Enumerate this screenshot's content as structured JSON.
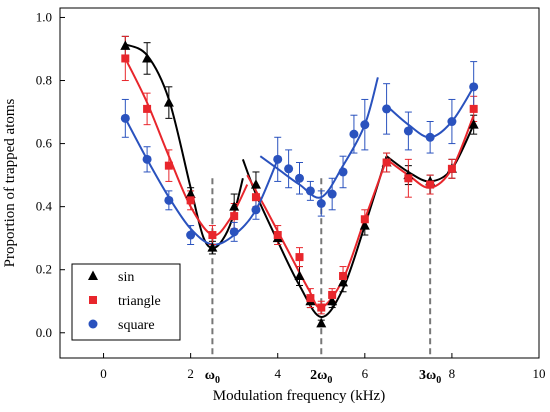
{
  "chart_data": {
    "type": "scatter",
    "xlabel": "Modulation frequency (kHz)",
    "ylabel": "Proportion of trapped atoms",
    "xlim": [
      -1,
      10
    ],
    "ylim": [
      -0.08,
      1.03
    ],
    "x_ticks": [
      0,
      2,
      4,
      6,
      8,
      10
    ],
    "y_ticks": [
      0.0,
      0.2,
      0.4,
      0.6,
      0.8,
      1.0
    ],
    "x_tick_labels": [
      "0",
      "2",
      "4",
      "6",
      "8",
      "10"
    ],
    "y_tick_labels": [
      "0.0",
      "0.2",
      "0.4",
      "0.6",
      "0.8",
      "1.0"
    ],
    "grid": false,
    "legend_position": "bottom-left",
    "reference_lines": [
      {
        "x": 2.5,
        "label": "ω",
        "subscript": "0"
      },
      {
        "x": 5.0,
        "label": "2ω",
        "subscript": "0"
      },
      {
        "x": 7.5,
        "label": "3ω",
        "subscript": "0"
      }
    ],
    "series": [
      {
        "name": "sin",
        "color": "#000000",
        "marker": "triangle",
        "x": [
          0.5,
          1.0,
          1.5,
          2.0,
          2.5,
          3.0,
          3.5,
          4.0,
          4.5,
          4.75,
          5.0,
          5.25,
          5.5,
          6.0,
          6.5,
          7.0,
          7.5,
          8.0,
          8.5
        ],
        "y": [
          0.91,
          0.87,
          0.73,
          0.44,
          0.27,
          0.4,
          0.47,
          0.3,
          0.18,
          0.1,
          0.03,
          0.1,
          0.16,
          0.34,
          0.54,
          0.5,
          0.48,
          0.52,
          0.66
        ],
        "err": [
          0.03,
          0.05,
          0.05,
          0.02,
          0.02,
          0.04,
          0.04,
          0.02,
          0.03,
          0.02,
          0.01,
          0.02,
          0.03,
          0.03,
          0.03,
          0.03,
          0.02,
          0.03,
          0.03
        ]
      },
      {
        "name": "triangle",
        "color": "#e8262c",
        "marker": "square",
        "x": [
          0.5,
          1.0,
          1.5,
          2.0,
          2.5,
          3.0,
          3.5,
          4.0,
          4.5,
          4.75,
          5.0,
          5.25,
          5.5,
          6.0,
          6.5,
          7.0,
          7.5,
          8.0,
          8.5
        ],
        "y": [
          0.87,
          0.71,
          0.53,
          0.42,
          0.31,
          0.37,
          0.43,
          0.31,
          0.24,
          0.11,
          0.08,
          0.12,
          0.18,
          0.36,
          0.54,
          0.49,
          0.47,
          0.52,
          0.71
        ],
        "err": [
          0.07,
          0.05,
          0.05,
          0.03,
          0.03,
          0.04,
          0.03,
          0.03,
          0.03,
          0.03,
          0.02,
          0.02,
          0.03,
          0.03,
          0.03,
          0.06,
          0.03,
          0.03,
          0.04
        ]
      },
      {
        "name": "square",
        "color": "#2a52be",
        "marker": "circle",
        "x": [
          0.5,
          1.0,
          1.5,
          2.0,
          3.0,
          3.5,
          4.0,
          4.25,
          4.5,
          4.75,
          5.0,
          5.25,
          5.5,
          5.75,
          6.0,
          6.5,
          7.0,
          7.5,
          8.0,
          8.5
        ],
        "y": [
          0.68,
          0.55,
          0.42,
          0.31,
          0.32,
          0.39,
          0.55,
          0.52,
          0.49,
          0.45,
          0.41,
          0.44,
          0.51,
          0.63,
          0.66,
          0.71,
          0.64,
          0.62,
          0.67,
          0.78
        ],
        "err": [
          0.06,
          0.04,
          0.03,
          0.03,
          0.03,
          0.03,
          0.07,
          0.06,
          0.05,
          0.03,
          0.04,
          0.05,
          0.05,
          0.06,
          0.08,
          0.08,
          0.06,
          0.05,
          0.07,
          0.08
        ]
      }
    ],
    "fit_curves": [
      {
        "series": "sin",
        "color": "#000000",
        "segments": [
          [
            [
              0.5,
              0.915
            ],
            [
              1.0,
              0.88
            ],
            [
              1.5,
              0.74
            ],
            [
              2.0,
              0.46
            ],
            [
              2.3,
              0.3
            ],
            [
              2.55,
              0.27
            ],
            [
              2.8,
              0.31
            ],
            [
              3.0,
              0.38
            ],
            [
              3.2,
              0.49
            ]
          ],
          [
            [
              3.2,
              0.55
            ],
            [
              3.5,
              0.44
            ],
            [
              4.0,
              0.29
            ],
            [
              4.5,
              0.15
            ],
            [
              5.0,
              0.05
            ],
            [
              5.5,
              0.14
            ],
            [
              6.0,
              0.34
            ],
            [
              6.5,
              0.56
            ]
          ],
          [
            [
              6.5,
              0.56
            ],
            [
              7.0,
              0.51
            ],
            [
              7.5,
              0.48
            ],
            [
              8.0,
              0.52
            ],
            [
              8.5,
              0.66
            ]
          ]
        ]
      },
      {
        "series": "triangle",
        "color": "#e8262c",
        "segments": [
          [
            [
              0.5,
              0.87
            ],
            [
              1.0,
              0.73
            ],
            [
              1.5,
              0.56
            ],
            [
              2.0,
              0.4
            ],
            [
              2.5,
              0.31
            ],
            [
              2.9,
              0.36
            ],
            [
              3.3,
              0.47
            ]
          ],
          [
            [
              3.3,
              0.5
            ],
            [
              3.7,
              0.4
            ],
            [
              4.2,
              0.27
            ],
            [
              4.7,
              0.14
            ],
            [
              5.0,
              0.08
            ],
            [
              5.5,
              0.17
            ],
            [
              6.0,
              0.36
            ],
            [
              6.5,
              0.55
            ]
          ],
          [
            [
              6.5,
              0.55
            ],
            [
              7.0,
              0.5
            ],
            [
              7.5,
              0.46
            ],
            [
              8.0,
              0.52
            ],
            [
              8.5,
              0.69
            ]
          ]
        ]
      },
      {
        "series": "square",
        "color": "#2a52be",
        "segments": [
          [
            [
              0.5,
              0.68
            ],
            [
              1.0,
              0.55
            ],
            [
              1.5,
              0.43
            ],
            [
              2.0,
              0.33
            ],
            [
              2.5,
              0.28
            ],
            [
              3.0,
              0.31
            ],
            [
              3.5,
              0.39
            ],
            [
              4.0,
              0.55
            ]
          ],
          [
            [
              3.6,
              0.56
            ],
            [
              4.0,
              0.52
            ],
            [
              4.5,
              0.47
            ],
            [
              5.0,
              0.43
            ],
            [
              5.5,
              0.53
            ],
            [
              6.0,
              0.66
            ],
            [
              6.3,
              0.81
            ]
          ],
          [
            [
              6.5,
              0.72
            ],
            [
              7.0,
              0.66
            ],
            [
              7.5,
              0.62
            ],
            [
              8.0,
              0.67
            ],
            [
              8.5,
              0.78
            ]
          ]
        ]
      }
    ]
  }
}
